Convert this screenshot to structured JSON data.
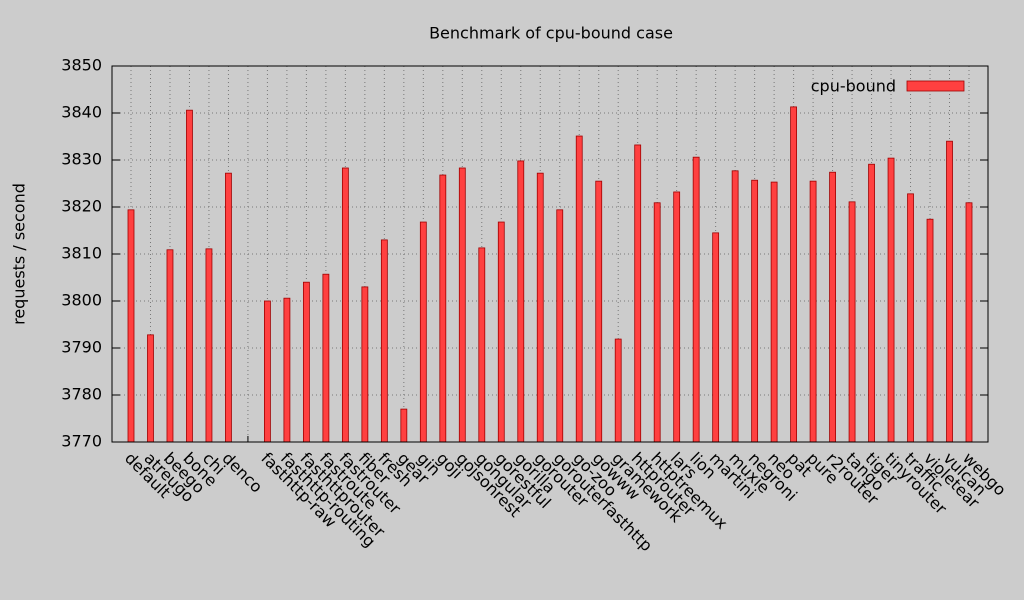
{
  "chart_data": {
    "type": "bar",
    "title": "Benchmark of cpu-bound case",
    "y_label": "requests / second",
    "categories": [
      "default",
      "atreugo",
      "beego",
      "bone",
      "chi",
      "denco",
      null,
      "fasthttp-raw",
      "fasthttp-routing",
      "fasthttprouter",
      "fastroute",
      "fastrouter",
      "fiber",
      "fresh",
      "gear",
      "gin",
      "goji",
      "gojsonrest",
      "gongular",
      "gorestful",
      "gorilla",
      "gorouter",
      "gorouterfasthttp",
      "go-zoo",
      "gowww",
      "gramework",
      "httprouter",
      "httptreemux",
      "lars",
      "lion",
      "martini",
      "muxie",
      "negroni",
      "neo",
      "pat",
      "pure",
      "r2router",
      "tango",
      "tiger",
      "tinyrouter",
      "traffic",
      "violetear",
      "vulcan",
      "webgo"
    ],
    "series": [
      {
        "name": "cpu-bound",
        "color": "#ff4040",
        "values": [
          3819.4,
          3792.8,
          3810.9,
          3840.6,
          3811.1,
          3827.2,
          null,
          3800.0,
          3800.6,
          3804.0,
          3805.7,
          3828.3,
          3803.0,
          3813.0,
          3777.0,
          3816.8,
          3826.8,
          3828.3,
          3811.3,
          3816.8,
          3829.8,
          3827.2,
          3819.4,
          3835.1,
          3825.5,
          3791.9,
          3833.2,
          3820.9,
          3823.2,
          3830.6,
          3814.5,
          3827.7,
          3825.7,
          3825.3,
          3841.3,
          3825.5,
          3827.4,
          3821.1,
          3829.1,
          3830.4,
          3822.8,
          3817.4,
          3834.0,
          3820.9
        ]
      }
    ],
    "ylim": [
      3770,
      3850
    ],
    "yticks": [
      3770,
      3780,
      3790,
      3800,
      3810,
      3820,
      3830,
      3840,
      3850
    ],
    "grid": true,
    "legend": "top-right"
  }
}
